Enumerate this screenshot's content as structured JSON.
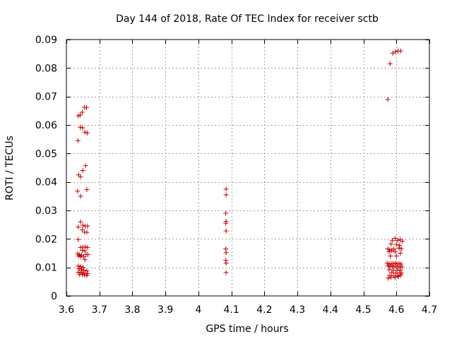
{
  "chart_data": {
    "type": "scatter",
    "title": "Day 144 of 2018, Rate Of TEC Index for receiver sctb",
    "xlabel": "GPS time / hours",
    "ylabel": "ROTI / TECUs",
    "xlim": [
      3.6,
      4.7
    ],
    "ylim": [
      0,
      0.09
    ],
    "xticks": [
      3.6,
      3.7,
      3.8,
      3.9,
      4.0,
      4.1,
      4.2,
      4.3,
      4.4,
      4.5,
      4.6,
      4.7
    ],
    "xtick_labels": [
      "3.6",
      "3.7",
      "3.8",
      "3.9",
      "4",
      "4.1",
      "4.2",
      "4.3",
      "4.4",
      "4.5",
      "4.6",
      "4.7"
    ],
    "yticks": [
      0,
      0.01,
      0.02,
      0.03,
      0.04,
      0.05,
      0.06,
      0.07,
      0.08,
      0.09
    ],
    "ytick_labels": [
      "0",
      "0.01",
      "0.02",
      "0.03",
      "0.04",
      "0.05",
      "0.06",
      "0.07",
      "0.08",
      "0.09"
    ],
    "grid": true,
    "marker": "+",
    "series": [
      {
        "name": "ROTI",
        "color": "#cc0000",
        "points": [
          [
            3.636,
            0.0632
          ],
          [
            3.642,
            0.0635
          ],
          [
            3.648,
            0.0645
          ],
          [
            3.655,
            0.0662
          ],
          [
            3.661,
            0.0661
          ],
          [
            3.642,
            0.0592
          ],
          [
            3.649,
            0.059
          ],
          [
            3.656,
            0.0575
          ],
          [
            3.663,
            0.0572
          ],
          [
            3.635,
            0.0545
          ],
          [
            3.658,
            0.0457
          ],
          [
            3.65,
            0.044
          ],
          [
            3.637,
            0.0425
          ],
          [
            3.643,
            0.0418
          ],
          [
            3.634,
            0.0368
          ],
          [
            3.662,
            0.0373
          ],
          [
            3.643,
            0.035
          ],
          [
            3.643,
            0.026
          ],
          [
            3.636,
            0.0242
          ],
          [
            3.65,
            0.0248
          ],
          [
            3.657,
            0.0245
          ],
          [
            3.664,
            0.0245
          ],
          [
            3.648,
            0.0232
          ],
          [
            3.655,
            0.0224
          ],
          [
            3.662,
            0.0223
          ],
          [
            3.636,
            0.0198
          ],
          [
            3.643,
            0.017
          ],
          [
            3.65,
            0.0171
          ],
          [
            3.657,
            0.0172
          ],
          [
            3.664,
            0.017
          ],
          [
            3.649,
            0.016
          ],
          [
            3.656,
            0.0158
          ],
          [
            3.634,
            0.0148
          ],
          [
            3.64,
            0.0145
          ],
          [
            3.646,
            0.0143
          ],
          [
            3.66,
            0.0145
          ],
          [
            3.665,
            0.0145
          ],
          [
            3.637,
            0.014
          ],
          [
            3.643,
            0.0138
          ],
          [
            3.652,
            0.0138
          ],
          [
            3.656,
            0.0127
          ],
          [
            3.636,
            0.0105
          ],
          [
            3.643,
            0.0103
          ],
          [
            3.65,
            0.01
          ],
          [
            3.639,
            0.0095
          ],
          [
            3.646,
            0.0092
          ],
          [
            3.653,
            0.009
          ],
          [
            3.662,
            0.0088
          ],
          [
            3.636,
            0.0083
          ],
          [
            3.643,
            0.0082
          ],
          [
            3.65,
            0.008
          ],
          [
            3.657,
            0.0079
          ],
          [
            3.664,
            0.0078
          ],
          [
            3.64,
            0.0075
          ],
          [
            3.648,
            0.0075
          ],
          [
            3.655,
            0.0073
          ],
          [
            3.662,
            0.0072
          ],
          [
            4.084,
            0.0375
          ],
          [
            4.084,
            0.0355
          ],
          [
            4.083,
            0.029
          ],
          [
            4.084,
            0.0262
          ],
          [
            4.083,
            0.0255
          ],
          [
            4.084,
            0.0228
          ],
          [
            4.083,
            0.0165
          ],
          [
            4.084,
            0.0152
          ],
          [
            4.083,
            0.0125
          ],
          [
            4.084,
            0.0115
          ],
          [
            4.084,
            0.0082
          ],
          [
            4.574,
            0.069
          ],
          [
            4.581,
            0.0815
          ],
          [
            4.589,
            0.0852
          ],
          [
            4.597,
            0.0857
          ],
          [
            4.605,
            0.086
          ],
          [
            4.613,
            0.086
          ],
          [
            4.588,
            0.0195
          ],
          [
            4.596,
            0.0202
          ],
          [
            4.604,
            0.0195
          ],
          [
            4.612,
            0.0198
          ],
          [
            4.618,
            0.0192
          ],
          [
            4.584,
            0.0182
          ],
          [
            4.6,
            0.018
          ],
          [
            4.61,
            0.0178
          ],
          [
            4.574,
            0.0165
          ],
          [
            4.58,
            0.0162
          ],
          [
            4.586,
            0.016
          ],
          [
            4.592,
            0.0165
          ],
          [
            4.608,
            0.0168
          ],
          [
            4.615,
            0.0165
          ],
          [
            4.578,
            0.0155
          ],
          [
            4.596,
            0.0155
          ],
          [
            4.612,
            0.015
          ],
          [
            4.582,
            0.014
          ],
          [
            4.6,
            0.014
          ],
          [
            4.572,
            0.0115
          ],
          [
            4.578,
            0.0112
          ],
          [
            4.584,
            0.0113
          ],
          [
            4.59,
            0.0114
          ],
          [
            4.596,
            0.0115
          ],
          [
            4.602,
            0.0113
          ],
          [
            4.608,
            0.0114
          ],
          [
            4.614,
            0.0112
          ],
          [
            4.575,
            0.0105
          ],
          [
            4.581,
            0.0103
          ],
          [
            4.587,
            0.0104
          ],
          [
            4.593,
            0.0102
          ],
          [
            4.599,
            0.0103
          ],
          [
            4.605,
            0.0102
          ],
          [
            4.611,
            0.0101
          ],
          [
            4.617,
            0.0102
          ],
          [
            4.578,
            0.0092
          ],
          [
            4.59,
            0.009
          ],
          [
            4.602,
            0.009
          ],
          [
            4.612,
            0.0091
          ],
          [
            4.586,
            0.0082
          ],
          [
            4.598,
            0.008
          ],
          [
            4.61,
            0.0081
          ],
          [
            4.616,
            0.008
          ],
          [
            4.58,
            0.0072
          ],
          [
            4.592,
            0.007
          ],
          [
            4.604,
            0.0071
          ],
          [
            4.613,
            0.0073
          ],
          [
            4.575,
            0.0062
          ],
          [
            4.584,
            0.0065
          ],
          [
            4.596,
            0.0065
          ],
          [
            4.606,
            0.0068
          ]
        ]
      }
    ]
  }
}
